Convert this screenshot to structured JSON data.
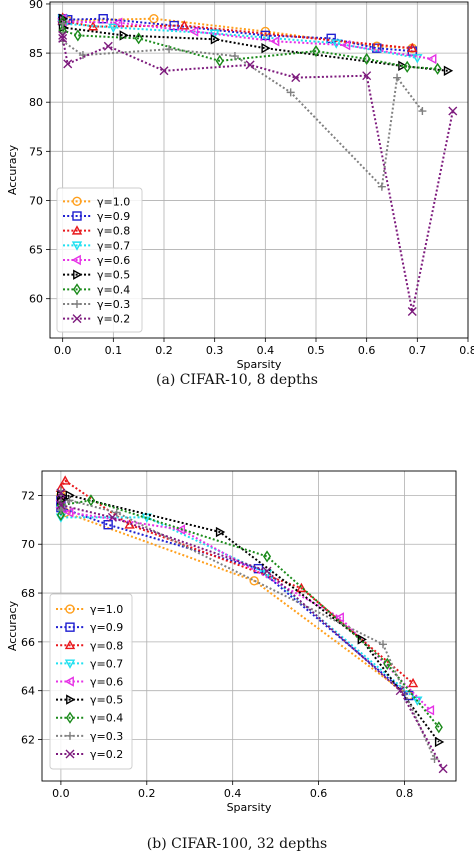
{
  "chart_data": [
    {
      "type": "line",
      "xlabel": "Sparsity",
      "ylabel": "Accuracy",
      "xlim": [
        -0.025,
        0.8
      ],
      "ylim": [
        56.0,
        90.2
      ],
      "xticks": [
        0.0,
        0.1,
        0.2,
        0.3,
        0.4,
        0.5,
        0.6,
        0.7,
        0.8
      ],
      "xtick_labels": [
        "0.0",
        "0.1",
        "0.2",
        "0.3",
        "0.4",
        "0.5",
        "0.6",
        "0.7",
        "0.8"
      ],
      "yticks": [
        60,
        65,
        70,
        75,
        80,
        85,
        90
      ],
      "ytick_labels": [
        "60",
        "65",
        "70",
        "75",
        "80",
        "85",
        "90"
      ],
      "grid": true,
      "legend_position": "lower-left",
      "caption": "(a)  CIFAR-10, 8 depths",
      "series": [
        {
          "name": "γ=1.0",
          "color": "#ff9f1c",
          "marker": "circle",
          "x": [
            0.0,
            0.0,
            0.01,
            0.18,
            0.4,
            0.62,
            0.69
          ],
          "y": [
            88.5,
            88.2,
            88.3,
            88.5,
            87.2,
            85.7,
            85.5
          ]
        },
        {
          "name": "γ=0.9",
          "color": "#1f1fd1",
          "marker": "square",
          "x": [
            0.0,
            0.0,
            0.01,
            0.08,
            0.22,
            0.4,
            0.53,
            0.62,
            0.69
          ],
          "y": [
            88.3,
            88.5,
            88.4,
            88.5,
            87.8,
            86.8,
            86.5,
            85.5,
            85.2
          ]
        },
        {
          "name": "γ=0.8",
          "color": "#e8171b",
          "marker": "triangle-up",
          "x": [
            0.0,
            0.0,
            0.06,
            0.24,
            0.69
          ],
          "y": [
            88.6,
            88.3,
            87.7,
            87.8,
            85.5
          ]
        },
        {
          "name": "γ=0.7",
          "color": "#1fe0f0",
          "marker": "triangle-down",
          "x": [
            0.0,
            0.0,
            0.1,
            0.3,
            0.54,
            0.7
          ],
          "y": [
            88.5,
            88.0,
            87.6,
            87.0,
            86.0,
            84.5
          ]
        },
        {
          "name": "γ=0.6",
          "color": "#e632e6",
          "marker": "triangle-left",
          "x": [
            0.0,
            0.0,
            0.11,
            0.26,
            0.42,
            0.56,
            0.73
          ],
          "y": [
            88.5,
            88.2,
            88.1,
            87.2,
            86.2,
            85.8,
            84.4
          ]
        },
        {
          "name": "γ=0.5",
          "color": "#000000",
          "marker": "triangle-right",
          "x": [
            0.0,
            0.0,
            0.12,
            0.3,
            0.4,
            0.67,
            0.76
          ],
          "y": [
            88.5,
            87.6,
            86.8,
            86.4,
            85.5,
            83.7,
            83.2
          ]
        },
        {
          "name": "γ=0.4",
          "color": "#1a8a1a",
          "marker": "diamond",
          "x": [
            0.0,
            0.0,
            0.03,
            0.15,
            0.31,
            0.5,
            0.6,
            0.68,
            0.74
          ],
          "y": [
            88.2,
            87.3,
            86.8,
            86.5,
            84.2,
            85.2,
            84.4,
            83.6,
            83.4
          ]
        },
        {
          "name": "γ=0.3",
          "color": "#808080",
          "marker": "plus",
          "x": [
            0.0,
            0.0,
            0.04,
            0.21,
            0.34,
            0.45,
            0.63,
            0.66,
            0.71
          ],
          "y": [
            88.0,
            86.2,
            84.8,
            85.4,
            84.7,
            81.0,
            71.4,
            82.5,
            79.1
          ]
        },
        {
          "name": "γ=0.2",
          "color": "#7d1a7d",
          "marker": "x",
          "x": [
            0.0,
            0.0,
            0.01,
            0.09,
            0.2,
            0.37,
            0.46,
            0.6,
            0.69,
            0.77
          ],
          "y": [
            86.8,
            86.5,
            83.9,
            85.7,
            83.2,
            83.8,
            82.5,
            82.7,
            58.7,
            79.1
          ]
        }
      ]
    },
    {
      "type": "line",
      "xlabel": "Sparsity",
      "ylabel": "Accuracy",
      "xlim": [
        -0.044,
        0.92
      ],
      "ylim": [
        60.3,
        73.0
      ],
      "xticks": [
        0.0,
        0.2,
        0.4,
        0.6,
        0.8
      ],
      "xtick_labels": [
        "0.0",
        "0.2",
        "0.4",
        "0.6",
        "0.8"
      ],
      "yticks": [
        62,
        64,
        66,
        68,
        70,
        72
      ],
      "ytick_labels": [
        "62",
        "64",
        "66",
        "68",
        "70",
        "72"
      ],
      "grid": true,
      "legend_position": "lower-left",
      "caption": "(b)  CIFAR-100, 32 depths",
      "series": [
        {
          "name": "γ=1.0",
          "color": "#ff9f1c",
          "marker": "circle",
          "x": [
            0.0,
            0.0,
            0.01,
            0.45,
            0.81
          ],
          "y": [
            72.0,
            71.6,
            71.3,
            68.5,
            63.8
          ]
        },
        {
          "name": "γ=0.9",
          "color": "#1f1fd1",
          "marker": "square",
          "x": [
            0.0,
            0.0,
            0.11,
            0.46,
            0.81
          ],
          "y": [
            71.8,
            71.5,
            70.8,
            69.0,
            63.8
          ]
        },
        {
          "name": "γ=0.8",
          "color": "#e8171b",
          "marker": "triangle-up",
          "x": [
            0.0,
            0.01,
            0.16,
            0.56,
            0.82
          ],
          "y": [
            72.3,
            72.6,
            70.8,
            68.2,
            64.3
          ]
        },
        {
          "name": "γ=0.7",
          "color": "#1fe0f0",
          "marker": "triangle-down",
          "x": [
            0.0,
            0.0,
            0.2,
            0.48,
            0.83
          ],
          "y": [
            71.4,
            71.1,
            71.1,
            68.8,
            63.6
          ]
        },
        {
          "name": "γ=0.6",
          "color": "#e632e6",
          "marker": "triangle-left",
          "x": [
            0.0,
            0.0,
            0.02,
            0.28,
            0.65,
            0.86
          ],
          "y": [
            71.8,
            71.5,
            71.3,
            70.6,
            67.0,
            63.2
          ]
        },
        {
          "name": "γ=0.5",
          "color": "#000000",
          "marker": "triangle-right",
          "x": [
            0.0,
            0.0,
            0.02,
            0.37,
            0.7,
            0.88
          ],
          "y": [
            72.0,
            71.8,
            72.0,
            70.5,
            66.1,
            61.9
          ]
        },
        {
          "name": "γ=0.4",
          "color": "#1a8a1a",
          "marker": "diamond",
          "x": [
            0.0,
            0.0,
            0.07,
            0.48,
            0.76,
            0.88
          ],
          "y": [
            71.2,
            71.6,
            71.8,
            69.5,
            65.1,
            62.5
          ]
        },
        {
          "name": "γ=0.3",
          "color": "#808080",
          "marker": "plus",
          "x": [
            0.0,
            0.0,
            0.02,
            0.13,
            0.75,
            0.87
          ],
          "y": [
            72.2,
            71.4,
            71.8,
            71.3,
            65.9,
            61.2
          ]
        },
        {
          "name": "γ=0.2",
          "color": "#7d1a7d",
          "marker": "x",
          "x": [
            0.0,
            0.0,
            0.12,
            0.48,
            0.79,
            0.89
          ],
          "y": [
            72.1,
            71.6,
            71.1,
            68.9,
            64.0,
            60.8
          ]
        }
      ]
    }
  ]
}
